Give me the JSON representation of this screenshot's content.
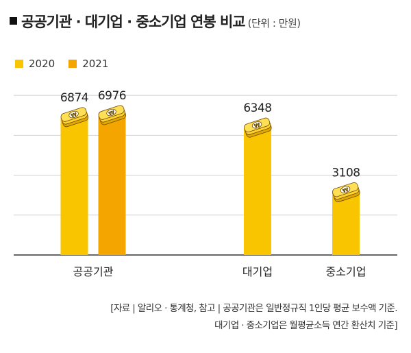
{
  "title": {
    "main": "공공기관 · 대기업 · 중소기업 연봉 비교",
    "unit": "(단위 : 만원)"
  },
  "chart_data": {
    "type": "bar",
    "title": "공공기관 · 대기업 · 중소기업 연봉 비교",
    "unit": "만원",
    "categories": [
      "공공기관",
      "대기업",
      "중소기업"
    ],
    "series": [
      {
        "name": "2020",
        "color": "#F9C500",
        "values": [
          6874,
          6348,
          3108
        ]
      },
      {
        "name": "2021",
        "color": "#F5A500",
        "values": [
          6976,
          null,
          null
        ]
      }
    ],
    "ylim": [
      0,
      9000
    ],
    "grid": true,
    "legend": "top-left",
    "icon": "money-stack-icon"
  },
  "notes": [
    "[자료 | 알리오 · 통계청, 참고 | 공공기관은 일반정규직 1인당 평균 보수액 기준.",
    "대기업 · 중소기업은 월평균소득 연간 환산치 기준]"
  ]
}
